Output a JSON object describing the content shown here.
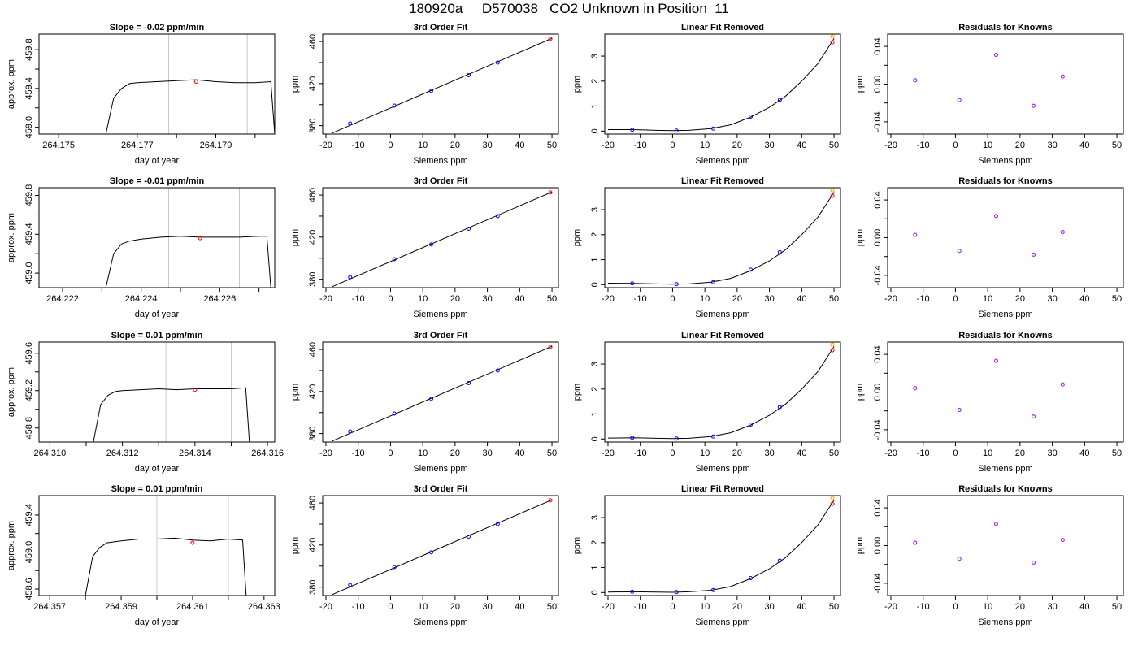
{
  "page_title": "180920a     D570038   CO2 Unknown in Position  11",
  "colors": {
    "line": "#000000",
    "grid": "#c8c8c8",
    "known": "#0000ff",
    "resid": "#a020f0",
    "unknown": "#ff0000",
    "fit_extra": "#ffa500"
  },
  "chart_data": [
    {
      "type": "line",
      "title": "Slope =  -0.02  ppm/min",
      "xlabel": "day of year",
      "ylabel": "approx. ppm",
      "xlim": [
        264.1745,
        264.1805
      ],
      "ylim": [
        458.93,
        459.96
      ],
      "x_ticks": [
        "264.175",
        "264.177",
        "264.179"
      ],
      "x_minor_ticks": [
        264.176,
        264.178,
        264.18
      ],
      "y_ticks": [
        "459.0",
        "459.4",
        "459.8"
      ],
      "y_minor_ticks": [
        459.2,
        459.6
      ],
      "vlines": [
        264.1778,
        264.1798
      ],
      "series": [
        {
          "x": [
            264.1762,
            264.1764,
            264.1766,
            264.1768,
            264.177,
            264.1775,
            264.178,
            264.1785,
            264.179,
            264.1795,
            264.18,
            264.1804,
            264.1805
          ],
          "y": [
            458.93,
            459.3,
            459.4,
            459.45,
            459.46,
            459.47,
            459.48,
            459.49,
            459.47,
            459.46,
            459.46,
            459.47,
            458.93
          ]
        }
      ],
      "marker": {
        "x": 264.1785,
        "y": 459.47
      }
    },
    {
      "type": "scatter",
      "title": "3rd Order Fit",
      "xlabel": "Siemens ppm",
      "ylabel": "ppm",
      "xlim": [
        -21,
        52
      ],
      "ylim": [
        372,
        467
      ],
      "x_ticks": [
        -20,
        -10,
        0,
        10,
        20,
        30,
        40,
        50
      ],
      "y_ticks": [
        380,
        420,
        460
      ],
      "y_minor_ticks": [
        400,
        440
      ],
      "fit_line": {
        "x": [
          -18,
          50
        ],
        "y": [
          373,
          463
        ]
      },
      "knowns": {
        "x": [
          -12.5,
          1.2,
          12.6,
          24.2,
          33.2
        ],
        "y": [
          382,
          399,
          413,
          428,
          440
        ]
      },
      "unknown": {
        "x": 49.5,
        "y": 462.5
      }
    },
    {
      "type": "line",
      "title": "Linear Fit Removed",
      "xlabel": "Siemens ppm",
      "ylabel": "ppm",
      "xlim": [
        -21,
        52
      ],
      "ylim": [
        -0.12,
        3.88
      ],
      "x_ticks": [
        -20,
        -10,
        0,
        10,
        20,
        30,
        40,
        50
      ],
      "y_ticks": [
        0,
        1,
        2,
        3
      ],
      "curve": {
        "x": [
          -20,
          -12,
          -5,
          0,
          5,
          12,
          18,
          24,
          30,
          35,
          40,
          45,
          50
        ],
        "y": [
          0.06,
          0.06,
          0.03,
          0.02,
          0.03,
          0.1,
          0.25,
          0.55,
          0.95,
          1.4,
          2.0,
          2.7,
          3.7
        ]
      },
      "knowns": {
        "x": [
          -12.5,
          1.2,
          12.6,
          24.2,
          33.2
        ],
        "y": [
          0.05,
          0.02,
          0.1,
          0.58,
          1.25
        ]
      },
      "unknown": {
        "x": 49.5,
        "y": 3.55
      },
      "unknown_alt": {
        "x": 49.5,
        "y": 3.78
      }
    },
    {
      "type": "scatter",
      "title": "Residuals for Knowns",
      "xlabel": "Siemens ppm",
      "ylabel": "ppm",
      "xlim": [
        -21,
        52
      ],
      "ylim": [
        -0.053,
        0.053
      ],
      "x_ticks": [
        -20,
        -10,
        0,
        10,
        20,
        30,
        40,
        50
      ],
      "y_ticks": [
        "-0.04",
        "0.00",
        "0.04"
      ],
      "y_minor_ticks": [
        -0.02,
        0.02
      ],
      "points": {
        "x": [
          -12.5,
          1.2,
          12.6,
          24.2,
          33.2
        ],
        "y": [
          0.004,
          -0.017,
          0.031,
          -0.023,
          0.008
        ]
      }
    },
    {
      "type": "line",
      "title": "Slope =  -0.01  ppm/min",
      "xlabel": "day of year",
      "ylabel": "approx. ppm",
      "xlim": [
        264.2214,
        264.2274
      ],
      "ylim": [
        458.85,
        459.88
      ],
      "x_ticks": [
        "264.222",
        "264.224",
        "264.226"
      ],
      "x_minor_ticks": [
        264.223,
        264.225,
        264.227
      ],
      "y_ticks": [
        "459.0",
        "459.4",
        "459.8"
      ],
      "y_minor_ticks": [
        459.2,
        459.6
      ],
      "vlines": [
        264.2247,
        264.2265
      ],
      "series": [
        {
          "x": [
            264.2231,
            264.2233,
            264.2235,
            264.2237,
            264.224,
            264.2245,
            264.225,
            264.2255,
            264.226,
            264.2265,
            264.227,
            264.2272,
            264.2273
          ],
          "y": [
            458.85,
            459.2,
            459.3,
            459.33,
            459.35,
            459.37,
            459.38,
            459.37,
            459.37,
            459.37,
            459.38,
            459.38,
            458.85
          ]
        }
      ],
      "marker": {
        "x": 264.2255,
        "y": 459.36
      }
    },
    {
      "type": "scatter",
      "title": "3rd Order Fit",
      "xlabel": "Siemens ppm",
      "ylabel": "ppm",
      "xlim": [
        -21,
        52
      ],
      "ylim": [
        372,
        467
      ],
      "x_ticks": [
        -20,
        -10,
        0,
        10,
        20,
        30,
        40,
        50
      ],
      "y_ticks": [
        380,
        420,
        460
      ],
      "y_minor_ticks": [
        400,
        440
      ],
      "fit_line": {
        "x": [
          -18,
          50
        ],
        "y": [
          373,
          463
        ]
      },
      "knowns": {
        "x": [
          -12.5,
          1.2,
          12.6,
          24.2,
          33.2
        ],
        "y": [
          382,
          399,
          413,
          428,
          440
        ]
      },
      "unknown": {
        "x": 49.5,
        "y": 462.5
      }
    },
    {
      "type": "line",
      "title": "Linear Fit Removed",
      "xlabel": "Siemens ppm",
      "ylabel": "ppm",
      "xlim": [
        -21,
        52
      ],
      "ylim": [
        -0.12,
        3.88
      ],
      "x_ticks": [
        -20,
        -10,
        0,
        10,
        20,
        30,
        40,
        50
      ],
      "y_ticks": [
        0,
        1,
        2,
        3
      ],
      "curve": {
        "x": [
          -20,
          -12,
          -5,
          0,
          5,
          12,
          18,
          24,
          30,
          35,
          40,
          45,
          50
        ],
        "y": [
          0.06,
          0.05,
          0.03,
          0.02,
          0.03,
          0.1,
          0.25,
          0.55,
          0.95,
          1.4,
          2.0,
          2.7,
          3.7
        ]
      },
      "knowns": {
        "x": [
          -12.5,
          1.2,
          12.6,
          24.2,
          33.2
        ],
        "y": [
          0.05,
          0.02,
          0.1,
          0.6,
          1.3
        ]
      },
      "unknown": {
        "x": 49.5,
        "y": 3.55
      },
      "unknown_alt": {
        "x": 49.5,
        "y": 3.78
      }
    },
    {
      "type": "scatter",
      "title": "Residuals for Knowns",
      "xlabel": "Siemens ppm",
      "ylabel": "ppm",
      "xlim": [
        -21,
        52
      ],
      "ylim": [
        -0.053,
        0.053
      ],
      "x_ticks": [
        -20,
        -10,
        0,
        10,
        20,
        30,
        40,
        50
      ],
      "y_ticks": [
        "-0.04",
        "0.00",
        "0.04"
      ],
      "y_minor_ticks": [
        -0.02,
        0.02
      ],
      "points": {
        "x": [
          -12.5,
          1.2,
          12.6,
          24.2,
          33.2
        ],
        "y": [
          0.003,
          -0.014,
          0.023,
          -0.018,
          0.006
        ]
      }
    },
    {
      "type": "line",
      "title": "Slope =  0.01  ppm/min",
      "xlabel": "day of year",
      "ylabel": "approx. ppm",
      "xlim": [
        264.3097,
        264.3162
      ],
      "ylim": [
        458.65,
        459.72
      ],
      "x_ticks": [
        "264.310",
        "264.312",
        "264.314",
        "264.316"
      ],
      "x_minor_ticks": [
        264.311,
        264.313,
        264.315
      ],
      "y_ticks": [
        "458.8",
        "459.2",
        "459.6"
      ],
      "y_minor_ticks": [
        459.0,
        459.4
      ],
      "vlines": [
        264.3132,
        264.315
      ],
      "series": [
        {
          "x": [
            264.3112,
            264.3114,
            264.3116,
            264.3118,
            264.312,
            264.3125,
            264.313,
            264.3135,
            264.314,
            264.3145,
            264.315,
            264.3154,
            264.3155
          ],
          "y": [
            458.65,
            459.05,
            459.15,
            459.19,
            459.2,
            459.21,
            459.22,
            459.21,
            459.22,
            459.22,
            459.22,
            459.23,
            458.65
          ]
        }
      ],
      "marker": {
        "x": 264.314,
        "y": 459.21
      }
    },
    {
      "type": "scatter",
      "title": "3rd Order Fit",
      "xlabel": "Siemens ppm",
      "ylabel": "ppm",
      "xlim": [
        -21,
        52
      ],
      "ylim": [
        372,
        467
      ],
      "x_ticks": [
        -20,
        -10,
        0,
        10,
        20,
        30,
        40,
        50
      ],
      "y_ticks": [
        380,
        420,
        460
      ],
      "y_minor_ticks": [
        400,
        440
      ],
      "fit_line": {
        "x": [
          -18,
          50
        ],
        "y": [
          373,
          463
        ]
      },
      "knowns": {
        "x": [
          -12.5,
          1.2,
          12.6,
          24.2,
          33.2
        ],
        "y": [
          382,
          399,
          413,
          428,
          440
        ]
      },
      "unknown": {
        "x": 49.5,
        "y": 462.5
      }
    },
    {
      "type": "line",
      "title": "Linear Fit Removed",
      "xlabel": "Siemens ppm",
      "ylabel": "ppm",
      "xlim": [
        -21,
        52
      ],
      "ylim": [
        -0.12,
        3.88
      ],
      "x_ticks": [
        -20,
        -10,
        0,
        10,
        20,
        30,
        40,
        50
      ],
      "y_ticks": [
        0,
        1,
        2,
        3
      ],
      "curve": {
        "x": [
          -20,
          -12,
          -5,
          0,
          5,
          12,
          18,
          24,
          30,
          35,
          40,
          45,
          50
        ],
        "y": [
          0.04,
          0.05,
          0.03,
          0.02,
          0.03,
          0.1,
          0.25,
          0.55,
          0.95,
          1.4,
          2.0,
          2.7,
          3.7
        ]
      },
      "knowns": {
        "x": [
          -12.5,
          1.2,
          12.6,
          24.2,
          33.2
        ],
        "y": [
          0.05,
          0.02,
          0.1,
          0.58,
          1.28
        ]
      },
      "unknown": {
        "x": 49.5,
        "y": 3.55
      },
      "unknown_alt": {
        "x": 49.5,
        "y": 3.78
      }
    },
    {
      "type": "scatter",
      "title": "Residuals for Knowns",
      "xlabel": "Siemens ppm",
      "ylabel": "ppm",
      "xlim": [
        -21,
        52
      ],
      "ylim": [
        -0.053,
        0.053
      ],
      "x_ticks": [
        -20,
        -10,
        0,
        10,
        20,
        30,
        40,
        50
      ],
      "y_ticks": [
        "-0.04",
        "0.00",
        "0.04"
      ],
      "y_minor_ticks": [
        -0.02,
        0.02
      ],
      "points": {
        "x": [
          -12.5,
          1.2,
          12.6,
          24.2,
          33.2
        ],
        "y": [
          0.004,
          -0.019,
          0.033,
          -0.026,
          0.008
        ]
      }
    },
    {
      "type": "line",
      "title": "Slope =  0.01  ppm/min",
      "xlabel": "day of year",
      "ylabel": "approx. ppm",
      "xlim": [
        264.3567,
        264.3633
      ],
      "ylim": [
        458.53,
        459.61
      ],
      "x_ticks": [
        "264.357",
        "264.359",
        "264.361",
        "264.363"
      ],
      "x_minor_ticks": [
        264.358,
        264.36,
        264.362
      ],
      "y_ticks": [
        "458.6",
        "459.0",
        "459.4"
      ],
      "y_minor_ticks": [
        458.8,
        459.2
      ],
      "vlines": [
        264.36,
        264.362
      ],
      "series": [
        {
          "x": [
            264.358,
            264.3582,
            264.3584,
            264.3586,
            264.359,
            264.3595,
            264.36,
            264.3605,
            264.361,
            264.3615,
            264.362,
            264.3624,
            264.3625
          ],
          "y": [
            458.53,
            458.95,
            459.05,
            459.1,
            459.12,
            459.14,
            459.14,
            459.15,
            459.13,
            459.12,
            459.14,
            459.13,
            458.53
          ]
        }
      ],
      "marker": {
        "x": 264.361,
        "y": 459.1
      }
    },
    {
      "type": "scatter",
      "title": "3rd Order Fit",
      "xlabel": "Siemens ppm",
      "ylabel": "ppm",
      "xlim": [
        -21,
        52
      ],
      "ylim": [
        372,
        467
      ],
      "x_ticks": [
        -20,
        -10,
        0,
        10,
        20,
        30,
        40,
        50
      ],
      "y_ticks": [
        380,
        420,
        460
      ],
      "y_minor_ticks": [
        400,
        440
      ],
      "fit_line": {
        "x": [
          -18,
          50
        ],
        "y": [
          373,
          463
        ]
      },
      "knowns": {
        "x": [
          -12.5,
          1.2,
          12.6,
          24.2,
          33.2
        ],
        "y": [
          382,
          399,
          413,
          428,
          440
        ]
      },
      "unknown": {
        "x": 49.5,
        "y": 462.5
      }
    },
    {
      "type": "line",
      "title": "Linear Fit Removed",
      "xlabel": "Siemens ppm",
      "ylabel": "ppm",
      "xlim": [
        -21,
        52
      ],
      "ylim": [
        -0.12,
        3.88
      ],
      "x_ticks": [
        -20,
        -10,
        0,
        10,
        20,
        30,
        40,
        50
      ],
      "y_ticks": [
        0,
        1,
        2,
        3
      ],
      "curve": {
        "x": [
          -20,
          -12,
          -5,
          0,
          5,
          12,
          18,
          24,
          30,
          35,
          40,
          45,
          50
        ],
        "y": [
          0.02,
          0.03,
          0.02,
          0.01,
          0.03,
          0.09,
          0.24,
          0.55,
          0.95,
          1.4,
          2.0,
          2.7,
          3.7
        ]
      },
      "knowns": {
        "x": [
          -12.5,
          1.2,
          12.6,
          24.2,
          33.2
        ],
        "y": [
          0.03,
          0.02,
          0.1,
          0.58,
          1.28
        ]
      },
      "unknown": {
        "x": 49.5,
        "y": 3.55
      },
      "unknown_alt": {
        "x": 49.5,
        "y": 3.78
      }
    },
    {
      "type": "scatter",
      "title": "Residuals for Knowns",
      "xlabel": "Siemens ppm",
      "ylabel": "ppm",
      "xlim": [
        -21,
        52
      ],
      "ylim": [
        -0.053,
        0.053
      ],
      "x_ticks": [
        -20,
        -10,
        0,
        10,
        20,
        30,
        40,
        50
      ],
      "y_ticks": [
        "-0.04",
        "0.00",
        "0.04"
      ],
      "y_minor_ticks": [
        -0.02,
        0.02
      ],
      "points": {
        "x": [
          -12.5,
          1.2,
          12.6,
          24.2,
          33.2
        ],
        "y": [
          0.003,
          -0.014,
          0.023,
          -0.018,
          0.006
        ]
      }
    }
  ]
}
